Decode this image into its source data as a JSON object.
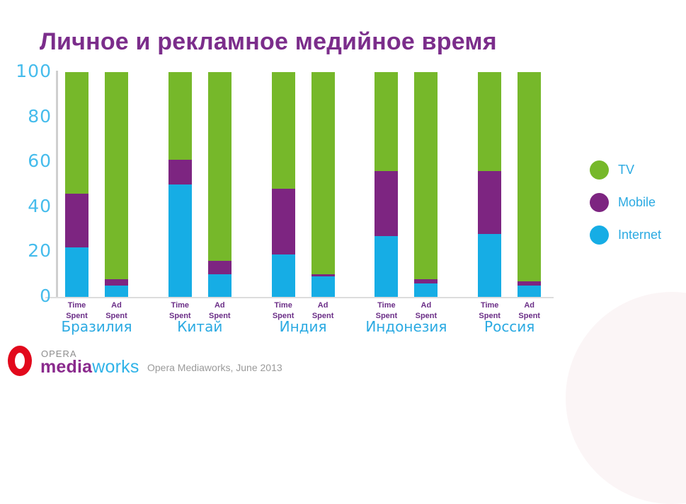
{
  "title": "Личное и рекламное медийное время",
  "colors": {
    "title": "#7B2D8B",
    "axis_text": "#45BCEC",
    "country_label": "#2BAAE2",
    "bar_label": "#6B2E87",
    "tv": "#76B82A",
    "mobile": "#7D2581",
    "internet": "#16ADE5",
    "logo_red": "#E2091C",
    "logo_purple": "#8A2A8D",
    "logo_blue": "#2FB3E8"
  },
  "chart_data": {
    "type": "bar",
    "stacked": true,
    "ylim": [
      0,
      100
    ],
    "yticks": [
      0,
      20,
      40,
      60,
      80,
      100
    ],
    "grid": false,
    "legend_position": "right",
    "legend": [
      {
        "key": "tv",
        "name": "TV",
        "color": "#76B82A"
      },
      {
        "key": "mobile",
        "name": "Mobile",
        "color": "#7D2581"
      },
      {
        "key": "internet",
        "name": "Internet",
        "color": "#16ADE5"
      }
    ],
    "stack_order_top_to_bottom": [
      "tv",
      "mobile",
      "internet"
    ],
    "groups": [
      {
        "country": "Бразилия",
        "bars": [
          {
            "label": "Time Spent",
            "values": {
              "internet": 22,
              "mobile": 24,
              "tv": 54
            }
          },
          {
            "label": "Ad Spent",
            "values": {
              "internet": 5,
              "mobile": 3,
              "tv": 92
            }
          }
        ]
      },
      {
        "country": "Китай",
        "bars": [
          {
            "label": "Time Spent",
            "values": {
              "internet": 50,
              "mobile": 11,
              "tv": 39
            }
          },
          {
            "label": "Ad Spent",
            "values": {
              "internet": 10,
              "mobile": 6,
              "tv": 84
            }
          }
        ]
      },
      {
        "country": "Индия",
        "bars": [
          {
            "label": "Time Spent",
            "values": {
              "internet": 19,
              "mobile": 29,
              "tv": 52
            }
          },
          {
            "label": "Ad Spent",
            "values": {
              "internet": 9,
              "mobile": 1,
              "tv": 90
            }
          }
        ]
      },
      {
        "country": "Индонезия",
        "bars": [
          {
            "label": "Time Spent",
            "values": {
              "internet": 27,
              "mobile": 29,
              "tv": 44
            }
          },
          {
            "label": "Ad Spent",
            "values": {
              "internet": 6,
              "mobile": 2,
              "tv": 92
            }
          }
        ]
      },
      {
        "country": "Россия",
        "bars": [
          {
            "label": "Time Spent",
            "values": {
              "internet": 28,
              "mobile": 28,
              "tv": 44
            }
          },
          {
            "label": "Ad Spent",
            "values": {
              "internet": 5,
              "mobile": 2,
              "tv": 93
            }
          }
        ]
      }
    ]
  },
  "footer": {
    "brand_top": "OPERA",
    "brand_bold": "media",
    "brand_light": "works",
    "note": "Opera Mediaworks, June 2013"
  }
}
